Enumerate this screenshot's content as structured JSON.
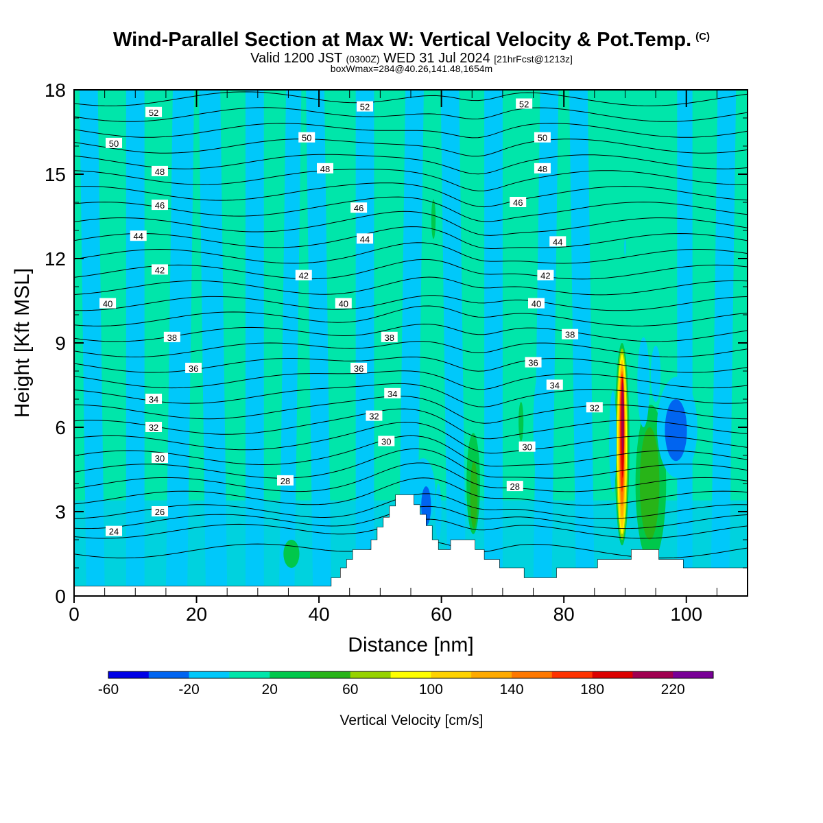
{
  "header": {
    "title": "Wind-Parallel Section at Max W: Vertical Velocity & Pot.Temp.",
    "title_suffix": "(C)",
    "valid_prefix": "Valid 1200 JST",
    "valid_utc": "(0300Z)",
    "valid_date": "WED 31 Jul 2024",
    "forecast": "[21hrFcst@1213z]",
    "boxwmax": "boxWmax=284@40.26,141.48,1654m"
  },
  "colors": {
    "bins": [
      "#0000e6",
      "#0064f0",
      "#00c8fa",
      "#00e6aa",
      "#00c84b",
      "#28b418",
      "#96d200",
      "#ffff00",
      "#ffd200",
      "#ffaa00",
      "#ff7800",
      "#ff3200",
      "#dc0000",
      "#a00050",
      "#780096"
    ],
    "background": "#00e6aa",
    "terrain": "#ffffff",
    "contour": "#000000"
  },
  "colorbar": {
    "label": "Vertical Velocity [cm/s]",
    "tick_labels": [
      "-60",
      "-20",
      "20",
      "60",
      "100",
      "140",
      "180",
      "220"
    ]
  },
  "chart_data": {
    "type": "heatmap",
    "xlabel": "Distance [nm]",
    "ylabel": "Height [Kft MSL]",
    "xlim": [
      0,
      110
    ],
    "ylim": [
      0,
      18
    ],
    "x_ticks": [
      0,
      20,
      40,
      60,
      80,
      100
    ],
    "y_ticks": [
      0,
      3,
      6,
      9,
      12,
      15,
      18
    ],
    "color_levels": [
      -60,
      -40,
      -20,
      0,
      20,
      40,
      60,
      80,
      100,
      120,
      140,
      160,
      180,
      200,
      220,
      240
    ],
    "terrain": [
      [
        0,
        0.35
      ],
      [
        42,
        0.35
      ],
      [
        42,
        0.65
      ],
      [
        43.5,
        0.65
      ],
      [
        43.5,
        1.0
      ],
      [
        44.5,
        1.0
      ],
      [
        44.5,
        1.3
      ],
      [
        45.5,
        1.3
      ],
      [
        45.5,
        1.65
      ],
      [
        48.5,
        1.65
      ],
      [
        48.5,
        2.0
      ],
      [
        49.5,
        2.0
      ],
      [
        49.5,
        2.45
      ],
      [
        50.5,
        2.45
      ],
      [
        50.5,
        2.8
      ],
      [
        51.5,
        2.8
      ],
      [
        51.5,
        3.2
      ],
      [
        52.5,
        3.2
      ],
      [
        52.5,
        3.6
      ],
      [
        55.5,
        3.6
      ],
      [
        55.5,
        3.25
      ],
      [
        56.5,
        3.25
      ],
      [
        56.5,
        2.9
      ],
      [
        57.5,
        2.9
      ],
      [
        57.5,
        2.5
      ],
      [
        58.5,
        2.5
      ],
      [
        58.5,
        2.0
      ],
      [
        59.5,
        2.0
      ],
      [
        59.5,
        1.65
      ],
      [
        61.5,
        1.65
      ],
      [
        61.5,
        2.0
      ],
      [
        65.5,
        2.0
      ],
      [
        65.5,
        1.65
      ],
      [
        67,
        1.65
      ],
      [
        67,
        1.3
      ],
      [
        69.5,
        1.3
      ],
      [
        69.5,
        1.0
      ],
      [
        73.5,
        1.0
      ],
      [
        73.5,
        0.65
      ],
      [
        78.8,
        0.65
      ],
      [
        78.8,
        1.0
      ],
      [
        85.5,
        1.0
      ],
      [
        85.5,
        1.3
      ],
      [
        91,
        1.3
      ],
      [
        91,
        1.65
      ],
      [
        95.5,
        1.65
      ],
      [
        95.5,
        1.3
      ],
      [
        99.5,
        1.3
      ],
      [
        99.5,
        1.0
      ],
      [
        110,
        1.0
      ]
    ],
    "theta_contour_labels": [
      {
        "x": 6.5,
        "y": 2.3,
        "value": 24
      },
      {
        "x": 14,
        "y": 3.0,
        "value": 26
      },
      {
        "x": 34.5,
        "y": 4.1,
        "value": 28
      },
      {
        "x": 72,
        "y": 3.9,
        "value": 28
      },
      {
        "x": 14,
        "y": 4.9,
        "value": 30
      },
      {
        "x": 51,
        "y": 5.5,
        "value": 30
      },
      {
        "x": 74,
        "y": 5.3,
        "value": 30
      },
      {
        "x": 13,
        "y": 6.0,
        "value": 32
      },
      {
        "x": 49,
        "y": 6.4,
        "value": 32
      },
      {
        "x": 85,
        "y": 6.7,
        "value": 32
      },
      {
        "x": 13,
        "y": 7.0,
        "value": 34
      },
      {
        "x": 52,
        "y": 7.2,
        "value": 34
      },
      {
        "x": 78.5,
        "y": 7.5,
        "value": 34
      },
      {
        "x": 19.5,
        "y": 8.1,
        "value": 36
      },
      {
        "x": 46.5,
        "y": 8.1,
        "value": 36
      },
      {
        "x": 75,
        "y": 8.3,
        "value": 36
      },
      {
        "x": 16,
        "y": 9.2,
        "value": 38
      },
      {
        "x": 51.5,
        "y": 9.2,
        "value": 38
      },
      {
        "x": 81,
        "y": 9.3,
        "value": 38
      },
      {
        "x": 5.5,
        "y": 10.4,
        "value": 40
      },
      {
        "x": 44,
        "y": 10.4,
        "value": 40
      },
      {
        "x": 75.5,
        "y": 10.4,
        "value": 40
      },
      {
        "x": 14,
        "y": 11.6,
        "value": 42
      },
      {
        "x": 37.5,
        "y": 11.4,
        "value": 42
      },
      {
        "x": 77,
        "y": 11.4,
        "value": 42
      },
      {
        "x": 10.5,
        "y": 12.8,
        "value": 44
      },
      {
        "x": 47.5,
        "y": 12.7,
        "value": 44
      },
      {
        "x": 79,
        "y": 12.6,
        "value": 44
      },
      {
        "x": 14,
        "y": 13.9,
        "value": 46
      },
      {
        "x": 46.5,
        "y": 13.8,
        "value": 46
      },
      {
        "x": 72.5,
        "y": 14.0,
        "value": 46
      },
      {
        "x": 14,
        "y": 15.1,
        "value": 48
      },
      {
        "x": 41,
        "y": 15.2,
        "value": 48
      },
      {
        "x": 76.5,
        "y": 15.2,
        "value": 48
      },
      {
        "x": 6.5,
        "y": 16.1,
        "value": 50
      },
      {
        "x": 38,
        "y": 16.3,
        "value": 50
      },
      {
        "x": 76.5,
        "y": 16.3,
        "value": 50
      },
      {
        "x": 13,
        "y": 17.2,
        "value": 52
      },
      {
        "x": 47.5,
        "y": 17.4,
        "value": 52
      },
      {
        "x": 73.5,
        "y": 17.5,
        "value": 52
      }
    ],
    "w_features": [
      {
        "x": 89.5,
        "y": 5.4,
        "rx": 1.2,
        "ry": 3.6,
        "w": 20
      },
      {
        "x": 89.5,
        "y": 5.4,
        "rx": 0.95,
        "ry": 3.4,
        "w": 60
      },
      {
        "x": 89.5,
        "y": 5.4,
        "rx": 0.8,
        "ry": 3.2,
        "w": 80
      },
      {
        "x": 89.5,
        "y": 5.4,
        "rx": 0.65,
        "ry": 3.0,
        "w": 100
      },
      {
        "x": 89.5,
        "y": 5.5,
        "rx": 0.52,
        "ry": 2.7,
        "w": 120
      },
      {
        "x": 89.5,
        "y": 5.6,
        "rx": 0.42,
        "ry": 2.4,
        "w": 140
      },
      {
        "x": 89.5,
        "y": 5.8,
        "rx": 0.34,
        "ry": 2.1,
        "w": 160
      },
      {
        "x": 89.6,
        "y": 6.0,
        "rx": 0.27,
        "ry": 1.8,
        "w": 180
      },
      {
        "x": 89.6,
        "y": 6.3,
        "rx": 0.18,
        "ry": 1.3,
        "w": 200
      },
      {
        "x": 94.2,
        "y": 4.0,
        "rx": 2.5,
        "ry": 2.8,
        "w": 20
      },
      {
        "x": 94.0,
        "y": 4.0,
        "rx": 1.6,
        "ry": 2.0,
        "w": 40
      },
      {
        "x": 88.0,
        "y": 5.5,
        "rx": 0.6,
        "ry": 1.8,
        "w": -20
      },
      {
        "x": 93.0,
        "y": 7.6,
        "rx": 1.0,
        "ry": 1.6,
        "w": -20
      },
      {
        "x": 95.0,
        "y": 7.9,
        "rx": 0.8,
        "ry": 1.0,
        "w": -20
      },
      {
        "x": 98.5,
        "y": 6.0,
        "rx": 3.3,
        "ry": 1.8,
        "w": -20
      },
      {
        "x": 98.3,
        "y": 5.9,
        "rx": 1.8,
        "ry": 1.1,
        "w": -40
      },
      {
        "x": 75.8,
        "y": 6.0,
        "rx": 0.8,
        "ry": 1.8,
        "w": -20
      },
      {
        "x": 74.0,
        "y": 5.5,
        "rx": 0.5,
        "ry": 1.0,
        "w": 0
      },
      {
        "x": 73.0,
        "y": 6.2,
        "rx": 0.4,
        "ry": 0.7,
        "w": 20
      },
      {
        "x": 83.0,
        "y": 5.3,
        "rx": 0.4,
        "ry": 0.6,
        "w": -20
      },
      {
        "x": 65.2,
        "y": 4.0,
        "rx": 1.1,
        "ry": 1.8,
        "w": 20
      },
      {
        "x": 65.3,
        "y": 3.6,
        "rx": 0.6,
        "ry": 1.2,
        "w": 40
      },
      {
        "x": 63.3,
        "y": 3.7,
        "rx": 0.5,
        "ry": 1.2,
        "w": -20
      },
      {
        "x": 57.0,
        "y": 3.7,
        "rx": 2.0,
        "ry": 1.2,
        "w": -20
      },
      {
        "x": 57.5,
        "y": 3.2,
        "rx": 0.8,
        "ry": 0.7,
        "w": -40
      },
      {
        "x": 59.5,
        "y": 3.0,
        "rx": 0.5,
        "ry": 1.0,
        "w": -20
      },
      {
        "x": 58.7,
        "y": 13.4,
        "rx": 0.35,
        "ry": 0.7,
        "w": 20
      },
      {
        "x": 90.0,
        "y": 12.4,
        "rx": 0.15,
        "ry": 0.3,
        "w": -20
      },
      {
        "x": 35.5,
        "y": 1.5,
        "rx": 1.3,
        "ry": 0.5,
        "w": 20
      }
    ]
  }
}
